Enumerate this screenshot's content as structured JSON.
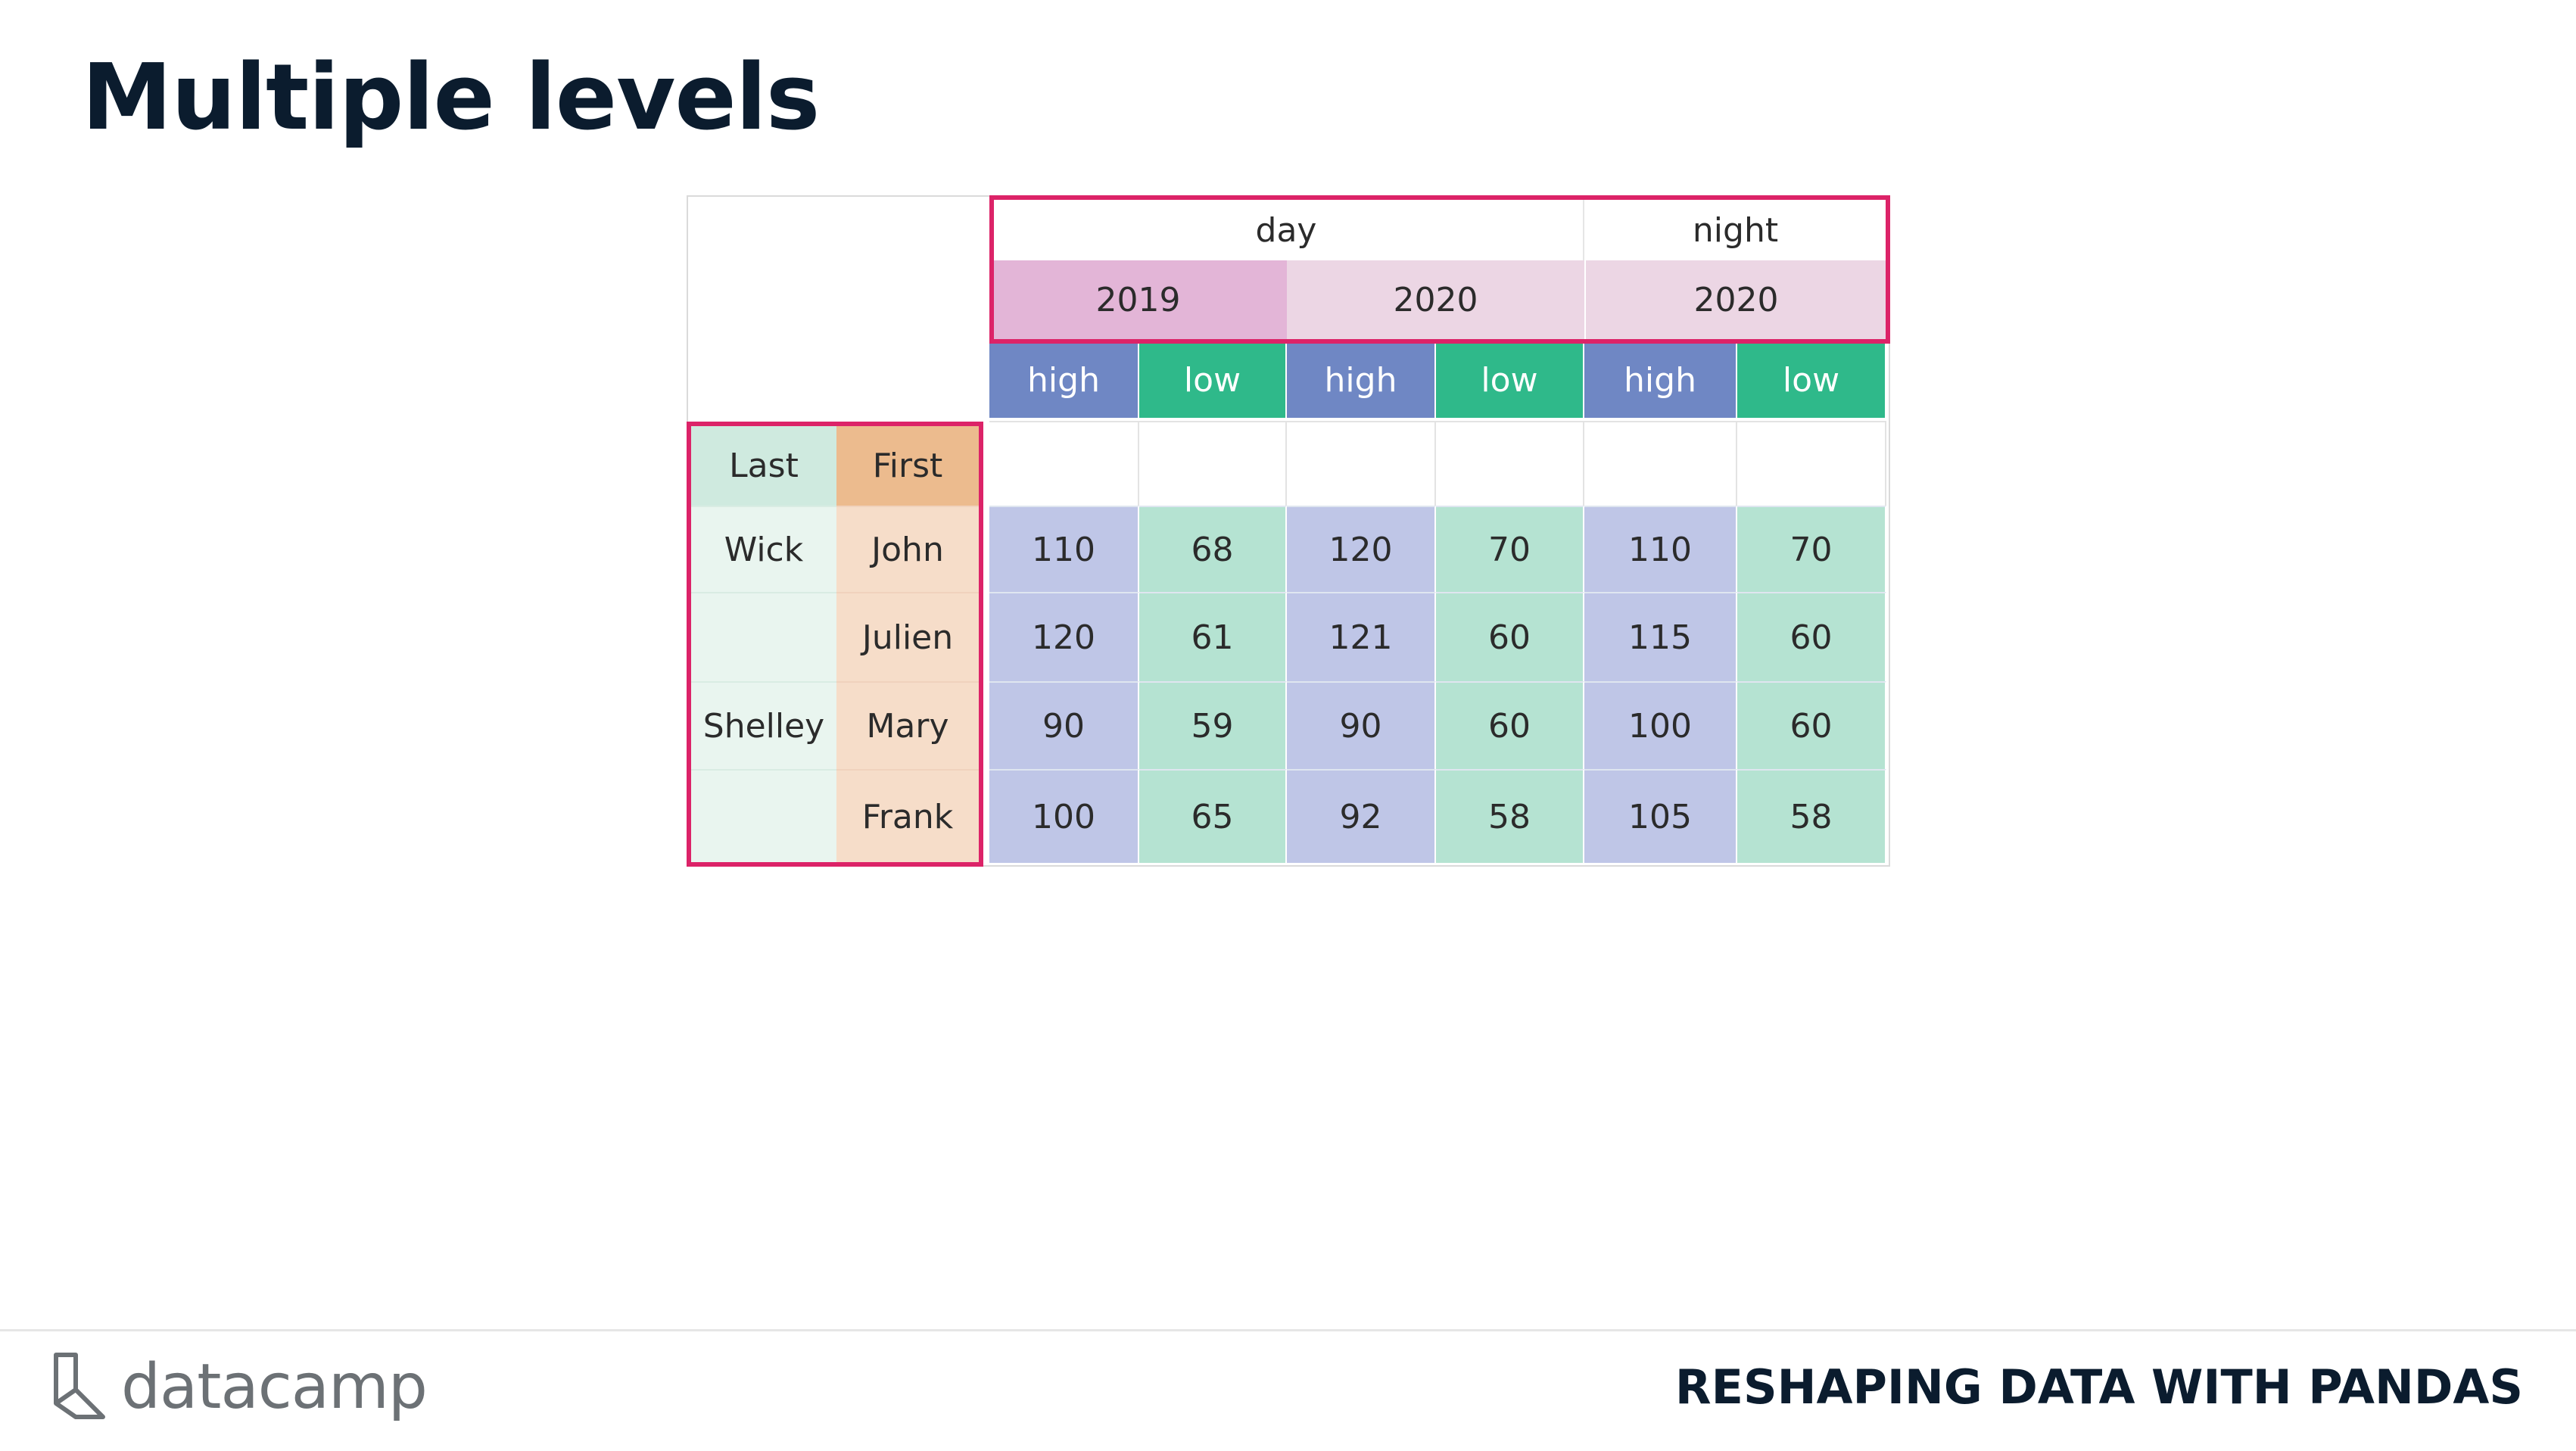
{
  "slide": {
    "title": "Multiple levels",
    "course_title": "RESHAPING DATA WITH PANDAS",
    "brand": "datacamp",
    "brand_icon": "datacamp-logo-icon"
  },
  "table": {
    "header_level0": [
      {
        "label": "day"
      },
      {
        "label": "night"
      }
    ],
    "header_level1": [
      {
        "label": "2019"
      },
      {
        "label": "2020"
      },
      {
        "label": "2020"
      }
    ],
    "header_level2": [
      "high",
      "low",
      "high",
      "low",
      "high",
      "low"
    ],
    "index_names": [
      "Last",
      "First"
    ],
    "rows": [
      {
        "last": "Wick",
        "first": "John",
        "values": [
          "110",
          "68",
          "120",
          "70",
          "110",
          "70"
        ]
      },
      {
        "last": "",
        "first": "Julien",
        "values": [
          "120",
          "61",
          "121",
          "60",
          "115",
          "60"
        ]
      },
      {
        "last": "Shelley",
        "first": "Mary",
        "values": [
          "90",
          "59",
          "90",
          "60",
          "100",
          "60"
        ]
      },
      {
        "last": "",
        "first": "Frank",
        "values": [
          "100",
          "65",
          "92",
          "58",
          "105",
          "58"
        ]
      }
    ],
    "colors": {
      "high_header": "#6f87c4",
      "low_header": "#2fb98a",
      "high_cell": "#bfc6e7",
      "low_cell": "#b5e3d2",
      "year_2019": "#e3b5d7",
      "year_2020": "#ecd6e4",
      "last_header": "#cfeadf",
      "last_cell": "#e9f5ef",
      "first_header": "#ecbb8e",
      "first_cell": "#f6ddc9",
      "outline": "#dc2368"
    }
  }
}
